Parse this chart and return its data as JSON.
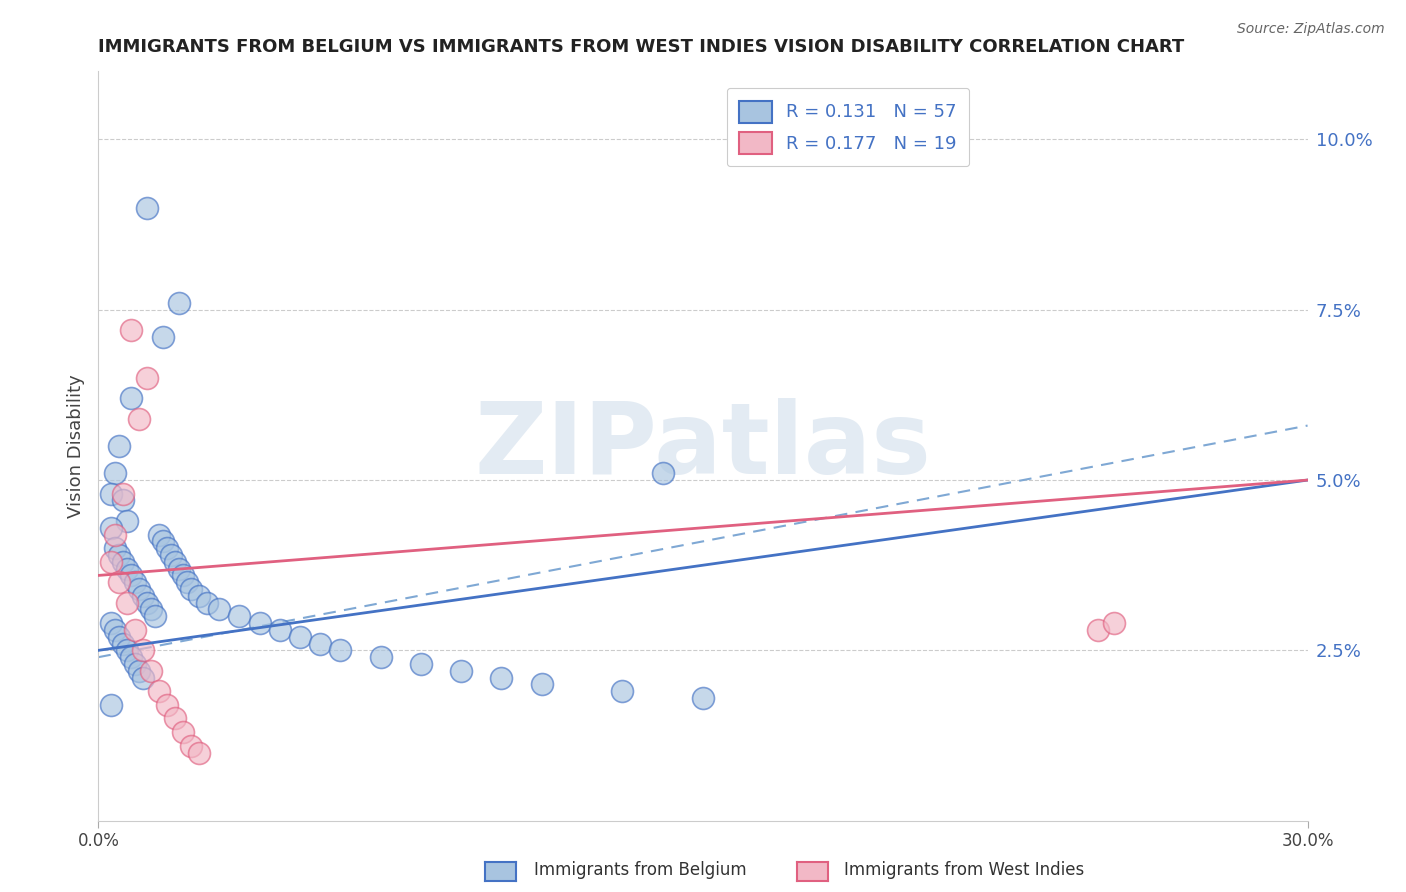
{
  "title": "IMMIGRANTS FROM BELGIUM VS IMMIGRANTS FROM WEST INDIES VISION DISABILITY CORRELATION CHART",
  "source": "Source: ZipAtlas.com",
  "ylabel": "Vision Disability",
  "ylabel_right_ticks": [
    "2.5%",
    "5.0%",
    "7.5%",
    "10.0%"
  ],
  "ylabel_right_vals": [
    0.025,
    0.05,
    0.075,
    0.1
  ],
  "xlim": [
    0.0,
    0.3
  ],
  "ylim": [
    0.0,
    0.11
  ],
  "r_blue": 0.131,
  "n_blue": 57,
  "r_pink": 0.177,
  "n_pink": 19,
  "legend_label_blue": "Immigrants from Belgium",
  "legend_label_pink": "Immigrants from West Indies",
  "blue_color": "#a8c4e0",
  "pink_color": "#f2b8c6",
  "line_blue": "#4472c4",
  "line_pink": "#e06080",
  "line_dash": "#7fa8d4",
  "watermark_color": "#c8d8e8",
  "blue_scatter_x": [
    0.012,
    0.02,
    0.016,
    0.008,
    0.005,
    0.004,
    0.003,
    0.006,
    0.007,
    0.003,
    0.004,
    0.005,
    0.006,
    0.007,
    0.008,
    0.009,
    0.01,
    0.011,
    0.012,
    0.013,
    0.014,
    0.003,
    0.004,
    0.005,
    0.006,
    0.007,
    0.008,
    0.009,
    0.01,
    0.011,
    0.015,
    0.016,
    0.017,
    0.018,
    0.019,
    0.02,
    0.021,
    0.022,
    0.023,
    0.025,
    0.027,
    0.03,
    0.035,
    0.04,
    0.045,
    0.05,
    0.055,
    0.06,
    0.07,
    0.08,
    0.09,
    0.1,
    0.11,
    0.13,
    0.15,
    0.14,
    0.003
  ],
  "blue_scatter_y": [
    0.09,
    0.076,
    0.071,
    0.062,
    0.055,
    0.051,
    0.048,
    0.047,
    0.044,
    0.043,
    0.04,
    0.039,
    0.038,
    0.037,
    0.036,
    0.035,
    0.034,
    0.033,
    0.032,
    0.031,
    0.03,
    0.029,
    0.028,
    0.027,
    0.026,
    0.025,
    0.024,
    0.023,
    0.022,
    0.021,
    0.042,
    0.041,
    0.04,
    0.039,
    0.038,
    0.037,
    0.036,
    0.035,
    0.034,
    0.033,
    0.032,
    0.031,
    0.03,
    0.029,
    0.028,
    0.027,
    0.026,
    0.025,
    0.024,
    0.023,
    0.022,
    0.021,
    0.02,
    0.019,
    0.018,
    0.051,
    0.017
  ],
  "pink_scatter_x": [
    0.008,
    0.012,
    0.01,
    0.006,
    0.004,
    0.003,
    0.005,
    0.007,
    0.009,
    0.011,
    0.013,
    0.015,
    0.017,
    0.019,
    0.021,
    0.023,
    0.025,
    0.248,
    0.252
  ],
  "pink_scatter_y": [
    0.072,
    0.065,
    0.059,
    0.048,
    0.042,
    0.038,
    0.035,
    0.032,
    0.028,
    0.025,
    0.022,
    0.019,
    0.017,
    0.015,
    0.013,
    0.011,
    0.01,
    0.028,
    0.029
  ],
  "blue_line_x0": 0.0,
  "blue_line_y0": 0.025,
  "blue_line_x1": 0.3,
  "blue_line_y1": 0.05,
  "pink_line_x0": 0.0,
  "pink_line_y0": 0.036,
  "pink_line_x1": 0.3,
  "pink_line_y1": 0.05,
  "dash_line_x0": 0.0,
  "dash_line_y0": 0.024,
  "dash_line_x1": 0.3,
  "dash_line_y1": 0.058
}
